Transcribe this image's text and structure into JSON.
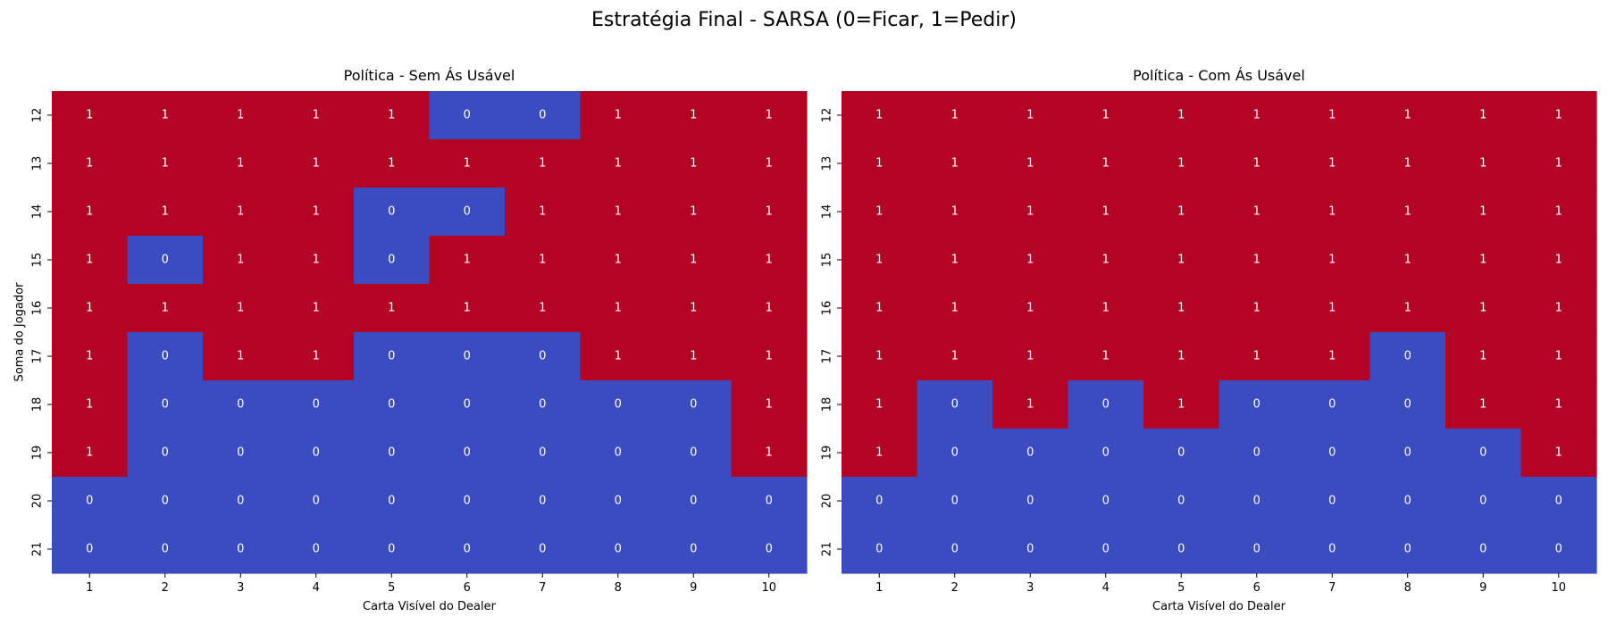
{
  "title": "Estratégia Final - SARSA (0=Ficar, 1=Pedir)",
  "colors": {
    "hit": "#b40426",
    "stand": "#3b4cc0",
    "text": "#ffffff",
    "axis": "#000000"
  },
  "chart_data": [
    {
      "type": "heatmap",
      "title": "Política - Sem Ás Usável",
      "xlabel": "Carta Visível do Dealer",
      "ylabel": "Soma do Jogador",
      "x": [
        1,
        2,
        3,
        4,
        5,
        6,
        7,
        8,
        9,
        10
      ],
      "y": [
        12,
        13,
        14,
        15,
        16,
        17,
        18,
        19,
        20,
        21
      ],
      "values": [
        [
          1,
          1,
          1,
          1,
          1,
          0,
          0,
          1,
          1,
          1
        ],
        [
          1,
          1,
          1,
          1,
          1,
          1,
          1,
          1,
          1,
          1
        ],
        [
          1,
          1,
          1,
          1,
          0,
          0,
          1,
          1,
          1,
          1
        ],
        [
          1,
          0,
          1,
          1,
          0,
          1,
          1,
          1,
          1,
          1
        ],
        [
          1,
          1,
          1,
          1,
          1,
          1,
          1,
          1,
          1,
          1
        ],
        [
          1,
          0,
          1,
          1,
          0,
          0,
          0,
          1,
          1,
          1
        ],
        [
          1,
          0,
          0,
          0,
          0,
          0,
          0,
          0,
          0,
          1
        ],
        [
          1,
          0,
          0,
          0,
          0,
          0,
          0,
          0,
          0,
          1
        ],
        [
          0,
          0,
          0,
          0,
          0,
          0,
          0,
          0,
          0,
          0
        ],
        [
          0,
          0,
          0,
          0,
          0,
          0,
          0,
          0,
          0,
          0
        ]
      ]
    },
    {
      "type": "heatmap",
      "title": "Política - Com Ás Usável",
      "xlabel": "Carta Visível do Dealer",
      "ylabel": "",
      "x": [
        1,
        2,
        3,
        4,
        5,
        6,
        7,
        8,
        9,
        10
      ],
      "y": [
        12,
        13,
        14,
        15,
        16,
        17,
        18,
        19,
        20,
        21
      ],
      "values": [
        [
          1,
          1,
          1,
          1,
          1,
          1,
          1,
          1,
          1,
          1
        ],
        [
          1,
          1,
          1,
          1,
          1,
          1,
          1,
          1,
          1,
          1
        ],
        [
          1,
          1,
          1,
          1,
          1,
          1,
          1,
          1,
          1,
          1
        ],
        [
          1,
          1,
          1,
          1,
          1,
          1,
          1,
          1,
          1,
          1
        ],
        [
          1,
          1,
          1,
          1,
          1,
          1,
          1,
          1,
          1,
          1
        ],
        [
          1,
          1,
          1,
          1,
          1,
          1,
          1,
          0,
          1,
          1
        ],
        [
          1,
          0,
          1,
          0,
          1,
          0,
          0,
          0,
          1,
          1
        ],
        [
          1,
          0,
          0,
          0,
          0,
          0,
          0,
          0,
          0,
          1
        ],
        [
          0,
          0,
          0,
          0,
          0,
          0,
          0,
          0,
          0,
          0
        ],
        [
          0,
          0,
          0,
          0,
          0,
          0,
          0,
          0,
          0,
          0
        ]
      ]
    }
  ]
}
